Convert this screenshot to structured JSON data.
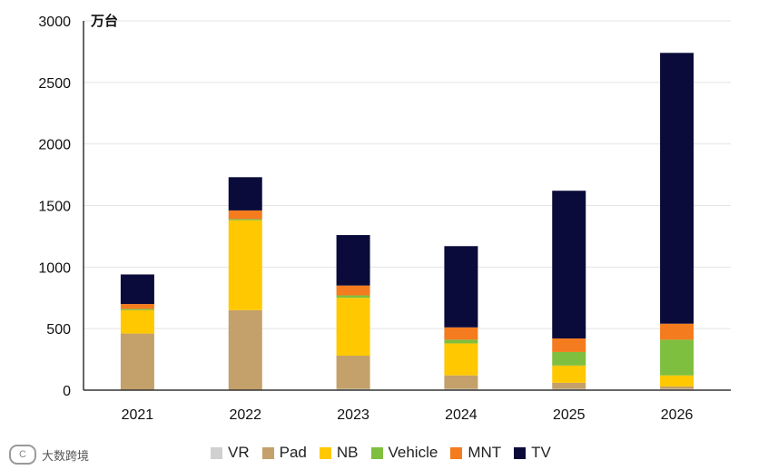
{
  "chart_data": {
    "type": "bar",
    "stacked": true,
    "title": "",
    "unit_label": "万台",
    "xlabel": "",
    "ylabel": "",
    "ylim": [
      0,
      3000
    ],
    "yticks": [
      0,
      500,
      1000,
      1500,
      2000,
      2500,
      3000
    ],
    "grid": true,
    "categories": [
      "2021",
      "2022",
      "2023",
      "2024",
      "2025",
      "2026"
    ],
    "series": [
      {
        "name": "VR",
        "color": "#d0d0d0",
        "values": [
          0,
          0,
          10,
          10,
          10,
          10
        ]
      },
      {
        "name": "Pad",
        "color": "#c4a06a",
        "values": [
          460,
          650,
          270,
          110,
          50,
          20
        ]
      },
      {
        "name": "NB",
        "color": "#ffc800",
        "values": [
          190,
          730,
          470,
          260,
          140,
          90
        ]
      },
      {
        "name": "Vehicle",
        "color": "#7fbf3f",
        "values": [
          10,
          10,
          20,
          30,
          110,
          290
        ]
      },
      {
        "name": "MNT",
        "color": "#f47c1e",
        "values": [
          40,
          70,
          80,
          100,
          110,
          130
        ]
      },
      {
        "name": "TV",
        "color": "#0b0b3b",
        "values": [
          240,
          270,
          410,
          660,
          1200,
          2200
        ]
      }
    ],
    "legend_position": "bottom"
  },
  "watermark": {
    "logo_text": "大数跨境",
    "logo_mark": "C"
  }
}
